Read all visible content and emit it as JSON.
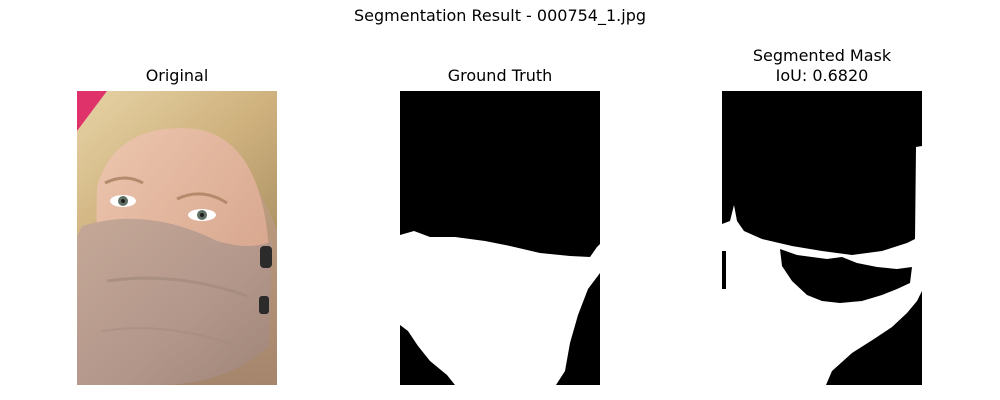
{
  "figure": {
    "title": "Segmentation Result - 000754_1.jpg"
  },
  "panels": [
    {
      "title": "Original",
      "content": "photo of a blonde woman wearing a beige cloth face mask"
    },
    {
      "title": "Ground Truth",
      "content": "binary mask"
    },
    {
      "title_line1": "Segmented Mask",
      "title_line2": "IoU: 0.6820",
      "content": "binary mask"
    }
  ],
  "colors": {
    "background": "#ffffff",
    "mask_foreground": "#ffffff",
    "mask_background": "#000000",
    "skin": "#e0b59c",
    "hair": "#d8c08e",
    "face_mask": "#b99c8a"
  }
}
